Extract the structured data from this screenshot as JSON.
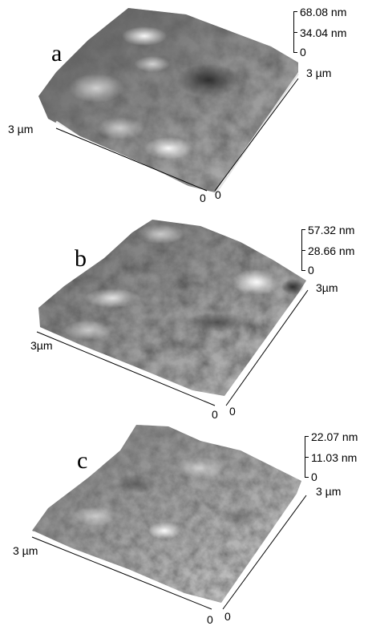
{
  "panels": [
    {
      "letter": "a",
      "z_max": "68.08 nm",
      "z_mid": "34.04 nm",
      "z_min": "0",
      "x_label": "3 µm",
      "y_label": "3 µm",
      "origin_x": "0",
      "origin_y": "0"
    },
    {
      "letter": "b",
      "z_max": "57.32 nm",
      "z_mid": "28.66 nm",
      "z_min": "0",
      "x_label": "3µm",
      "y_label": "3µm",
      "origin_x": "0",
      "origin_y": "0"
    },
    {
      "letter": "c",
      "z_max": "22.07 nm",
      "z_mid": "11.03 nm",
      "z_min": "0",
      "x_label": "3 µm",
      "y_label": "3 µm",
      "origin_x": "0",
      "origin_y": "0"
    }
  ]
}
